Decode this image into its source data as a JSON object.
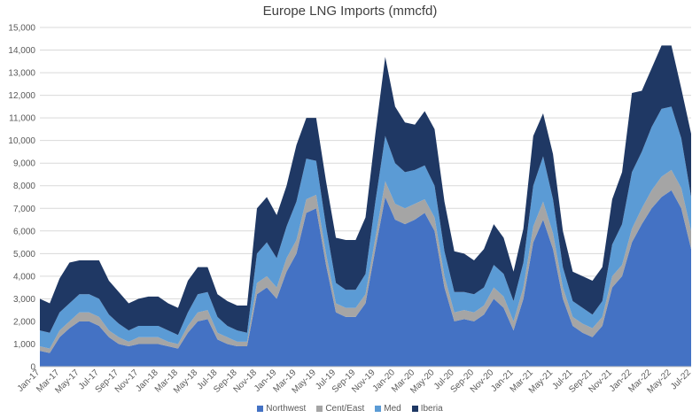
{
  "chart_data": {
    "type": "area",
    "stacked": true,
    "title": "Europe LNG Imports (mmcfd)",
    "xlabel": "",
    "ylabel": "",
    "ylim": [
      0,
      15000
    ],
    "grid": "horizontal",
    "legend_position": "bottom",
    "y_ticks": [
      "0",
      "1,000",
      "2,000",
      "3,000",
      "4,000",
      "5,000",
      "6,000",
      "7,000",
      "8,000",
      "9,000",
      "10,000",
      "11,000",
      "12,000",
      "13,000",
      "14,000",
      "15,000"
    ],
    "x_tick_labels": [
      "Jan-17",
      "Mar-17",
      "May-17",
      "Jul-17",
      "Sep-17",
      "Nov-17",
      "Jan-18",
      "Mar-18",
      "May-18",
      "Jul-18",
      "Sep-18",
      "Nov-18",
      "Jan-19",
      "Mar-19",
      "May-19",
      "Jul-19",
      "Sep-19",
      "Nov-19",
      "Jan-20",
      "Mar-20",
      "May-20",
      "Jul-20",
      "Sep-20",
      "Nov-20",
      "Jan-21",
      "Mar-21",
      "May-21",
      "Jul-21",
      "Sep-21",
      "Nov-21",
      "Jan-22",
      "Mar-22",
      "May-22",
      "Jul-22"
    ],
    "x_start": "2017-01",
    "x_end": "2022-07",
    "x": [
      "Jan-17",
      "Feb-17",
      "Mar-17",
      "Apr-17",
      "May-17",
      "Jun-17",
      "Jul-17",
      "Aug-17",
      "Sep-17",
      "Oct-17",
      "Nov-17",
      "Dec-17",
      "Jan-18",
      "Feb-18",
      "Mar-18",
      "Apr-18",
      "May-18",
      "Jun-18",
      "Jul-18",
      "Aug-18",
      "Sep-18",
      "Oct-18",
      "Nov-18",
      "Dec-18",
      "Jan-19",
      "Feb-19",
      "Mar-19",
      "Apr-19",
      "May-19",
      "Jun-19",
      "Jul-19",
      "Aug-19",
      "Sep-19",
      "Oct-19",
      "Nov-19",
      "Dec-19",
      "Jan-20",
      "Feb-20",
      "Mar-20",
      "Apr-20",
      "May-20",
      "Jun-20",
      "Jul-20",
      "Aug-20",
      "Sep-20",
      "Oct-20",
      "Nov-20",
      "Dec-20",
      "Jan-21",
      "Feb-21",
      "Mar-21",
      "Apr-21",
      "May-21",
      "Jun-21",
      "Jul-21",
      "Aug-21",
      "Sep-21",
      "Oct-21",
      "Nov-21",
      "Dec-21",
      "Jan-22",
      "Feb-22",
      "Mar-22",
      "Apr-22",
      "May-22",
      "Jun-22",
      "Jul-22"
    ],
    "series": [
      {
        "name": "Northwest",
        "color": "#4472C4",
        "values": [
          700,
          600,
          1300,
          1700,
          2000,
          2000,
          1800,
          1300,
          1000,
          900,
          1000,
          1000,
          1000,
          900,
          800,
          1500,
          2000,
          2100,
          1200,
          1000,
          900,
          900,
          3200,
          3500,
          3000,
          4200,
          5000,
          6800,
          7000,
          4500,
          2400,
          2200,
          2200,
          2800,
          5200,
          7500,
          6500,
          6300,
          6500,
          6800,
          6000,
          3500,
          2000,
          2100,
          2000,
          2300,
          3000,
          2600,
          1600,
          3000,
          5500,
          6500,
          5200,
          3000,
          1800,
          1500,
          1300,
          1800,
          3500,
          4000,
          5500,
          6300,
          7000,
          7500,
          7800,
          7000,
          5200
        ]
      },
      {
        "name": "Cent/East",
        "color": "#A5A5A5",
        "values": [
          200,
          200,
          300,
          300,
          400,
          400,
          400,
          300,
          300,
          200,
          300,
          300,
          300,
          200,
          200,
          300,
          400,
          400,
          300,
          300,
          200,
          200,
          500,
          500,
          500,
          600,
          600,
          600,
          600,
          500,
          400,
          400,
          400,
          400,
          500,
          700,
          700,
          700,
          700,
          600,
          600,
          500,
          400,
          400,
          400,
          400,
          500,
          500,
          400,
          500,
          700,
          800,
          700,
          500,
          400,
          400,
          400,
          400,
          500,
          500,
          600,
          700,
          800,
          900,
          900,
          900,
          800
        ]
      },
      {
        "name": "Med",
        "color": "#5B9BD5",
        "values": [
          700,
          700,
          800,
          800,
          800,
          800,
          800,
          700,
          600,
          500,
          500,
          500,
          500,
          500,
          400,
          600,
          800,
          800,
          700,
          500,
          500,
          400,
          1300,
          1500,
          1300,
          1400,
          1700,
          1800,
          1500,
          1200,
          900,
          800,
          800,
          900,
          1600,
          2000,
          1800,
          1600,
          1500,
          1500,
          1400,
          1100,
          900,
          800,
          800,
          800,
          1000,
          1000,
          900,
          1100,
          1800,
          2000,
          1500,
          900,
          700,
          700,
          600,
          700,
          1400,
          1800,
          2500,
          2500,
          2800,
          3000,
          2800,
          2200,
          1500
        ]
      },
      {
        "name": "Iberia",
        "color": "#1F3864",
        "values": [
          1400,
          1300,
          1500,
          1800,
          1500,
          1500,
          1700,
          1500,
          1400,
          1200,
          1200,
          1300,
          1300,
          1200,
          1200,
          1400,
          1200,
          1100,
          1000,
          1100,
          1100,
          1200,
          2000,
          2000,
          1900,
          1800,
          2500,
          1800,
          1900,
          2000,
          2000,
          2200,
          2200,
          2500,
          3000,
          3500,
          2500,
          2200,
          2000,
          2400,
          2500,
          2200,
          1800,
          1700,
          1500,
          1700,
          1800,
          1600,
          1300,
          1500,
          2200,
          1900,
          2000,
          1600,
          1300,
          1400,
          1500,
          1500,
          2000,
          2300,
          3500,
          2700,
          2600,
          2800,
          2700,
          2200,
          2800
        ]
      }
    ]
  }
}
